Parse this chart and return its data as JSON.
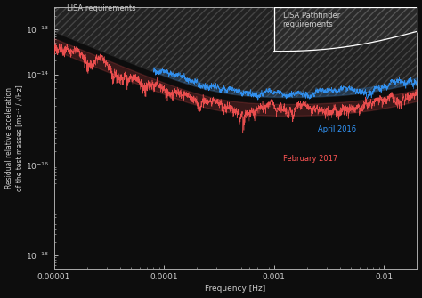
{
  "background_color": "#0d0d0d",
  "axes_color": "#0d0d0d",
  "spine_color": "#aaaaaa",
  "text_color": "#cccccc",
  "xlabel": "Frequency [Hz]",
  "ylabel": "Residual relative acceleration\nof the test masses [ms⁻² / √Hz]",
  "april2016_color": "#3399ff",
  "feb2017_color": "#ff5555",
  "label_april": "April 2016",
  "label_feb": "February 2017",
  "label_lisa": "LISA requirements",
  "label_lpf": "LISA Pathfinder\nrequirements",
  "font_size": 6.5,
  "hatch_color_lisa": "#444444",
  "hatch_color_lpf": "#555555",
  "lisa_fill_color": "#222222",
  "lpf_fill_color": "#2a2a2a"
}
